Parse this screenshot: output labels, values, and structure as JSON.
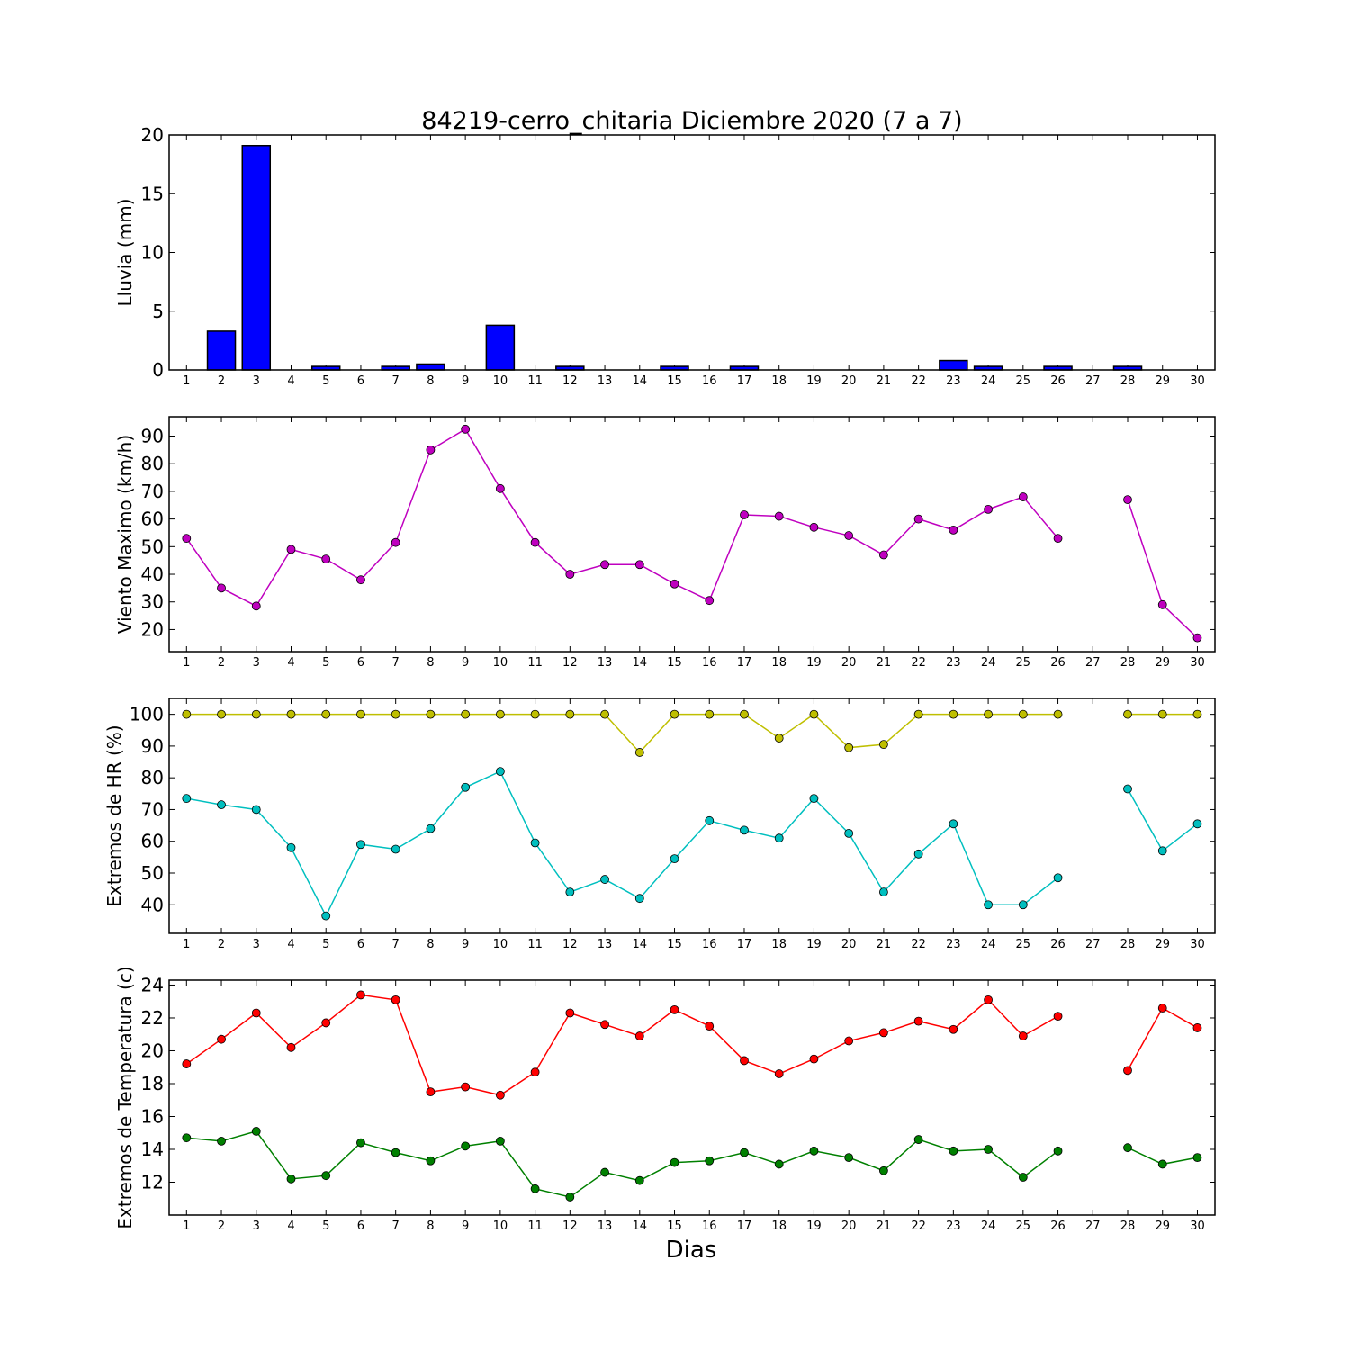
{
  "title": "84219-cerro_chitaria Diciembre 2020  (7 a 7)",
  "xlabel": "Dias",
  "days": [
    1,
    2,
    3,
    4,
    5,
    6,
    7,
    8,
    9,
    10,
    11,
    12,
    13,
    14,
    15,
    16,
    17,
    18,
    19,
    20,
    21,
    22,
    23,
    24,
    25,
    26,
    27,
    28,
    29,
    30
  ],
  "chart_data": [
    {
      "type": "bar",
      "ylabel": "Lluvia (mm)",
      "ylim": [
        0,
        20
      ],
      "yticks": [
        0,
        5,
        10,
        15,
        20
      ],
      "series": [
        {
          "color": "#0000ff",
          "values": [
            0,
            3.3,
            19.1,
            0,
            0.3,
            0,
            0.3,
            0.5,
            0,
            3.8,
            0,
            0.3,
            0,
            0,
            0.3,
            0,
            0.3,
            0,
            0,
            0,
            0,
            0,
            0.8,
            0.3,
            0,
            0.3,
            0,
            0.3,
            0,
            0
          ]
        }
      ]
    },
    {
      "type": "line",
      "ylabel": "Viento Maximo (km/h)",
      "ylim": [
        12,
        97
      ],
      "yticks": [
        20,
        30,
        40,
        50,
        60,
        70,
        80,
        90
      ],
      "series": [
        {
          "color": "#bf00bf",
          "values": [
            53,
            35,
            28.5,
            49,
            45.5,
            38,
            51.5,
            85,
            92.5,
            71,
            51.5,
            40,
            43.5,
            43.5,
            36.5,
            30.5,
            61.5,
            61,
            57,
            54,
            47,
            60,
            56,
            63.5,
            68,
            53,
            null,
            67,
            29,
            17
          ]
        }
      ]
    },
    {
      "type": "line",
      "ylabel": "Extremos de HR (%)",
      "ylim": [
        31,
        105
      ],
      "yticks": [
        40,
        50,
        60,
        70,
        80,
        90,
        100
      ],
      "series": [
        {
          "color": "#bfbf00",
          "values": [
            100,
            100,
            100,
            100,
            100,
            100,
            100,
            100,
            100,
            100,
            100,
            100,
            100,
            88,
            100,
            100,
            100,
            92.5,
            100,
            89.5,
            90.5,
            100,
            100,
            100,
            100,
            100,
            null,
            100,
            100,
            100
          ]
        },
        {
          "color": "#00bfbf",
          "values": [
            73.5,
            71.5,
            70,
            58,
            36.5,
            59,
            57.5,
            64,
            77,
            82,
            59.5,
            44,
            48,
            42,
            54.5,
            66.5,
            63.5,
            61,
            73.5,
            62.5,
            44,
            56,
            65.5,
            40,
            40,
            48.5,
            null,
            76.5,
            57,
            65.5
          ]
        }
      ]
    },
    {
      "type": "line",
      "ylabel": "Extremos de Temperatura (c)",
      "ylim": [
        10,
        24.3
      ],
      "yticks": [
        12,
        14,
        16,
        18,
        20,
        22,
        24
      ],
      "series": [
        {
          "color": "#ff0000",
          "values": [
            19.2,
            20.7,
            22.3,
            20.2,
            21.7,
            23.4,
            23.1,
            17.5,
            17.8,
            17.3,
            18.7,
            22.3,
            21.6,
            20.9,
            22.5,
            21.5,
            19.4,
            18.6,
            19.5,
            20.6,
            21.1,
            21.8,
            21.3,
            23.1,
            20.9,
            22.1,
            null,
            18.8,
            22.6,
            21.4
          ]
        },
        {
          "color": "#008000",
          "values": [
            14.7,
            14.5,
            15.1,
            12.2,
            12.4,
            14.4,
            13.8,
            13.3,
            14.2,
            14.5,
            11.6,
            11.1,
            12.6,
            12.1,
            13.2,
            13.3,
            13.8,
            13.1,
            13.9,
            13.5,
            12.7,
            14.6,
            13.9,
            14.0,
            12.3,
            13.9,
            null,
            14.1,
            13.1,
            13.5
          ]
        }
      ]
    }
  ]
}
